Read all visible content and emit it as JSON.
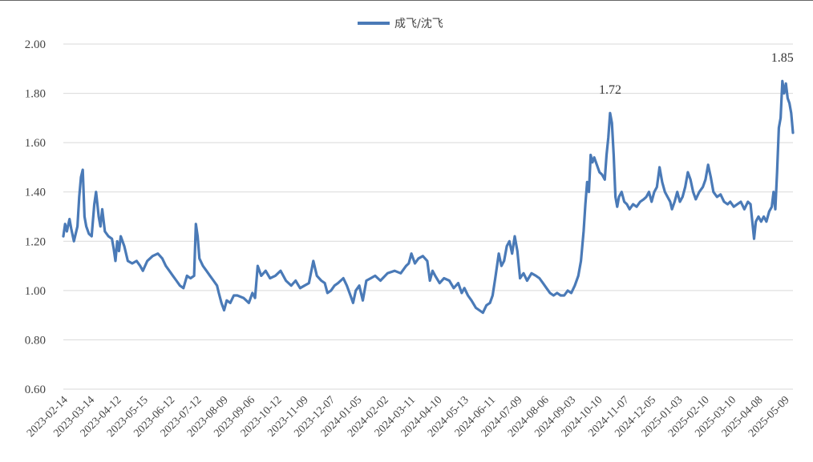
{
  "chart_data": {
    "type": "line",
    "title": "",
    "xlabel": "",
    "ylabel": "",
    "ylim": [
      0.6,
      2.0
    ],
    "yticks": [
      "0.60",
      "0.80",
      "1.00",
      "1.20",
      "1.40",
      "1.60",
      "1.80",
      "2.00"
    ],
    "grid": "horizontal",
    "legend": "top-center",
    "x_range": [
      "2023-02-14",
      "2025-05-20"
    ],
    "x_ticks": [
      "2023-02-14",
      "2023-03-14",
      "2023-04-12",
      "2023-05-15",
      "2023-06-12",
      "2023-07-12",
      "2023-08-09",
      "2023-09-06",
      "2023-10-12",
      "2023-11-09",
      "2023-12-07",
      "2024-01-05",
      "2024-02-02",
      "2024-03-11",
      "2024-04-10",
      "2024-05-13",
      "2024-06-11",
      "2024-07-09",
      "2024-08-06",
      "2024-09-03",
      "2024-10-10",
      "2024-11-07",
      "2024-12-05",
      "2025-01-03",
      "2025-02-10",
      "2025-03-10",
      "2025-04-08",
      "2025-05-09"
    ],
    "series": [
      {
        "name": "成飞/沈飞",
        "color": "#4a7ab7",
        "points": [
          [
            "2023-02-14",
            1.22
          ],
          [
            "2023-02-16",
            1.27
          ],
          [
            "2023-02-18",
            1.24
          ],
          [
            "2023-02-21",
            1.29
          ],
          [
            "2023-02-23",
            1.25
          ],
          [
            "2023-02-26",
            1.2
          ],
          [
            "2023-02-28",
            1.23
          ],
          [
            "2023-03-02",
            1.26
          ],
          [
            "2023-03-04",
            1.38
          ],
          [
            "2023-03-06",
            1.46
          ],
          [
            "2023-03-08",
            1.49
          ],
          [
            "2023-03-10",
            1.3
          ],
          [
            "2023-03-12",
            1.26
          ],
          [
            "2023-03-15",
            1.23
          ],
          [
            "2023-03-18",
            1.22
          ],
          [
            "2023-03-21",
            1.35
          ],
          [
            "2023-03-23",
            1.4
          ],
          [
            "2023-03-26",
            1.3
          ],
          [
            "2023-03-28",
            1.26
          ],
          [
            "2023-03-30",
            1.33
          ],
          [
            "2023-04-02",
            1.24
          ],
          [
            "2023-04-06",
            1.22
          ],
          [
            "2023-04-10",
            1.21
          ],
          [
            "2023-04-12",
            1.17
          ],
          [
            "2023-04-14",
            1.12
          ],
          [
            "2023-04-16",
            1.2
          ],
          [
            "2023-04-18",
            1.16
          ],
          [
            "2023-04-20",
            1.22
          ],
          [
            "2023-04-24",
            1.18
          ],
          [
            "2023-04-28",
            1.12
          ],
          [
            "2023-05-03",
            1.11
          ],
          [
            "2023-05-08",
            1.12
          ],
          [
            "2023-05-12",
            1.1
          ],
          [
            "2023-05-15",
            1.08
          ],
          [
            "2023-05-20",
            1.12
          ],
          [
            "2023-05-26",
            1.14
          ],
          [
            "2023-06-01",
            1.15
          ],
          [
            "2023-06-06",
            1.13
          ],
          [
            "2023-06-10",
            1.1
          ],
          [
            "2023-06-14",
            1.08
          ],
          [
            "2023-06-18",
            1.06
          ],
          [
            "2023-06-22",
            1.04
          ],
          [
            "2023-06-26",
            1.02
          ],
          [
            "2023-06-30",
            1.01
          ],
          [
            "2023-07-04",
            1.06
          ],
          [
            "2023-07-08",
            1.05
          ],
          [
            "2023-07-12",
            1.06
          ],
          [
            "2023-07-14",
            1.27
          ],
          [
            "2023-07-16",
            1.22
          ],
          [
            "2023-07-18",
            1.13
          ],
          [
            "2023-07-22",
            1.1
          ],
          [
            "2023-07-26",
            1.08
          ],
          [
            "2023-07-30",
            1.06
          ],
          [
            "2023-08-03",
            1.04
          ],
          [
            "2023-08-07",
            1.02
          ],
          [
            "2023-08-09",
            0.99
          ],
          [
            "2023-08-12",
            0.95
          ],
          [
            "2023-08-15",
            0.92
          ],
          [
            "2023-08-18",
            0.96
          ],
          [
            "2023-08-22",
            0.95
          ],
          [
            "2023-08-26",
            0.98
          ],
          [
            "2023-08-30",
            0.98
          ],
          [
            "2023-09-06",
            0.97
          ],
          [
            "2023-09-12",
            0.95
          ],
          [
            "2023-09-16",
            0.99
          ],
          [
            "2023-09-19",
            0.97
          ],
          [
            "2023-09-22",
            1.1
          ],
          [
            "2023-09-26",
            1.06
          ],
          [
            "2023-10-01",
            1.08
          ],
          [
            "2023-10-06",
            1.05
          ],
          [
            "2023-10-12",
            1.06
          ],
          [
            "2023-10-18",
            1.08
          ],
          [
            "2023-10-24",
            1.04
          ],
          [
            "2023-10-30",
            1.02
          ],
          [
            "2023-11-04",
            1.04
          ],
          [
            "2023-11-09",
            1.01
          ],
          [
            "2023-11-14",
            1.02
          ],
          [
            "2023-11-19",
            1.03
          ],
          [
            "2023-11-24",
            1.12
          ],
          [
            "2023-11-28",
            1.06
          ],
          [
            "2023-12-03",
            1.04
          ],
          [
            "2023-12-07",
            1.03
          ],
          [
            "2023-12-10",
            0.99
          ],
          [
            "2023-12-14",
            1.0
          ],
          [
            "2023-12-18",
            1.02
          ],
          [
            "2023-12-22",
            1.03
          ],
          [
            "2023-12-28",
            1.05
          ],
          [
            "2024-01-01",
            1.02
          ],
          [
            "2024-01-05",
            0.98
          ],
          [
            "2024-01-08",
            0.95
          ],
          [
            "2024-01-11",
            1.0
          ],
          [
            "2024-01-15",
            1.02
          ],
          [
            "2024-01-19",
            0.96
          ],
          [
            "2024-01-23",
            1.04
          ],
          [
            "2024-01-28",
            1.05
          ],
          [
            "2024-02-02",
            1.06
          ],
          [
            "2024-02-08",
            1.04
          ],
          [
            "2024-02-16",
            1.07
          ],
          [
            "2024-02-24",
            1.08
          ],
          [
            "2024-03-02",
            1.07
          ],
          [
            "2024-03-08",
            1.1
          ],
          [
            "2024-03-11",
            1.11
          ],
          [
            "2024-03-14",
            1.15
          ],
          [
            "2024-03-18",
            1.11
          ],
          [
            "2024-03-22",
            1.13
          ],
          [
            "2024-03-27",
            1.14
          ],
          [
            "2024-04-01",
            1.12
          ],
          [
            "2024-04-04",
            1.04
          ],
          [
            "2024-04-07",
            1.08
          ],
          [
            "2024-04-10",
            1.06
          ],
          [
            "2024-04-15",
            1.03
          ],
          [
            "2024-04-20",
            1.05
          ],
          [
            "2024-04-26",
            1.04
          ],
          [
            "2024-05-01",
            1.01
          ],
          [
            "2024-05-06",
            1.03
          ],
          [
            "2024-05-10",
            0.99
          ],
          [
            "2024-05-13",
            1.01
          ],
          [
            "2024-05-17",
            0.98
          ],
          [
            "2024-05-21",
            0.96
          ],
          [
            "2024-05-26",
            0.93
          ],
          [
            "2024-05-30",
            0.92
          ],
          [
            "2024-06-03",
            0.91
          ],
          [
            "2024-06-07",
            0.94
          ],
          [
            "2024-06-11",
            0.95
          ],
          [
            "2024-06-14",
            0.98
          ],
          [
            "2024-06-17",
            1.05
          ],
          [
            "2024-06-19",
            1.1
          ],
          [
            "2024-06-21",
            1.15
          ],
          [
            "2024-06-24",
            1.1
          ],
          [
            "2024-06-27",
            1.12
          ],
          [
            "2024-06-30",
            1.18
          ],
          [
            "2024-07-03",
            1.2
          ],
          [
            "2024-07-06",
            1.15
          ],
          [
            "2024-07-09",
            1.22
          ],
          [
            "2024-07-12",
            1.16
          ],
          [
            "2024-07-15",
            1.05
          ],
          [
            "2024-07-19",
            1.07
          ],
          [
            "2024-07-23",
            1.04
          ],
          [
            "2024-07-28",
            1.07
          ],
          [
            "2024-08-02",
            1.06
          ],
          [
            "2024-08-06",
            1.05
          ],
          [
            "2024-08-10",
            1.03
          ],
          [
            "2024-08-14",
            1.01
          ],
          [
            "2024-08-18",
            0.99
          ],
          [
            "2024-08-22",
            0.98
          ],
          [
            "2024-08-26",
            0.99
          ],
          [
            "2024-08-30",
            0.98
          ],
          [
            "2024-09-03",
            0.98
          ],
          [
            "2024-09-07",
            1.0
          ],
          [
            "2024-09-11",
            0.99
          ],
          [
            "2024-09-15",
            1.02
          ],
          [
            "2024-09-19",
            1.06
          ],
          [
            "2024-09-22",
            1.12
          ],
          [
            "2024-09-25",
            1.24
          ],
          [
            "2024-09-27",
            1.35
          ],
          [
            "2024-09-29",
            1.44
          ],
          [
            "2024-10-01",
            1.4
          ],
          [
            "2024-10-03",
            1.55
          ],
          [
            "2024-10-05",
            1.52
          ],
          [
            "2024-10-07",
            1.54
          ],
          [
            "2024-10-10",
            1.51
          ],
          [
            "2024-10-13",
            1.48
          ],
          [
            "2024-10-16",
            1.47
          ],
          [
            "2024-10-19",
            1.45
          ],
          [
            "2024-10-21",
            1.55
          ],
          [
            "2024-10-23",
            1.62
          ],
          [
            "2024-10-25",
            1.72
          ],
          [
            "2024-10-27",
            1.68
          ],
          [
            "2024-10-29",
            1.55
          ],
          [
            "2024-10-31",
            1.38
          ],
          [
            "2024-11-02",
            1.34
          ],
          [
            "2024-11-04",
            1.38
          ],
          [
            "2024-11-07",
            1.4
          ],
          [
            "2024-11-10",
            1.36
          ],
          [
            "2024-11-13",
            1.35
          ],
          [
            "2024-11-16",
            1.33
          ],
          [
            "2024-11-20",
            1.35
          ],
          [
            "2024-11-24",
            1.34
          ],
          [
            "2024-11-28",
            1.36
          ],
          [
            "2024-12-02",
            1.37
          ],
          [
            "2024-12-05",
            1.38
          ],
          [
            "2024-12-08",
            1.4
          ],
          [
            "2024-12-11",
            1.36
          ],
          [
            "2024-12-14",
            1.4
          ],
          [
            "2024-12-17",
            1.42
          ],
          [
            "2024-12-20",
            1.5
          ],
          [
            "2024-12-23",
            1.44
          ],
          [
            "2024-12-26",
            1.4
          ],
          [
            "2024-12-29",
            1.38
          ],
          [
            "2025-01-01",
            1.36
          ],
          [
            "2025-01-03",
            1.33
          ],
          [
            "2025-01-06",
            1.36
          ],
          [
            "2025-01-09",
            1.4
          ],
          [
            "2025-01-12",
            1.36
          ],
          [
            "2025-01-15",
            1.38
          ],
          [
            "2025-01-18",
            1.42
          ],
          [
            "2025-01-21",
            1.48
          ],
          [
            "2025-01-24",
            1.45
          ],
          [
            "2025-01-27",
            1.4
          ],
          [
            "2025-01-30",
            1.37
          ],
          [
            "2025-02-03",
            1.4
          ],
          [
            "2025-02-07",
            1.42
          ],
          [
            "2025-02-10",
            1.45
          ],
          [
            "2025-02-13",
            1.51
          ],
          [
            "2025-02-16",
            1.46
          ],
          [
            "2025-02-19",
            1.4
          ],
          [
            "2025-02-23",
            1.38
          ],
          [
            "2025-02-27",
            1.39
          ],
          [
            "2025-03-03",
            1.36
          ],
          [
            "2025-03-07",
            1.35
          ],
          [
            "2025-03-10",
            1.36
          ],
          [
            "2025-03-14",
            1.34
          ],
          [
            "2025-03-18",
            1.35
          ],
          [
            "2025-03-22",
            1.36
          ],
          [
            "2025-03-26",
            1.33
          ],
          [
            "2025-03-30",
            1.36
          ],
          [
            "2025-04-02",
            1.35
          ],
          [
            "2025-04-04",
            1.28
          ],
          [
            "2025-04-06",
            1.21
          ],
          [
            "2025-04-08",
            1.28
          ],
          [
            "2025-04-11",
            1.3
          ],
          [
            "2025-04-14",
            1.28
          ],
          [
            "2025-04-17",
            1.3
          ],
          [
            "2025-04-20",
            1.28
          ],
          [
            "2025-04-23",
            1.32
          ],
          [
            "2025-04-26",
            1.34
          ],
          [
            "2025-04-28",
            1.4
          ],
          [
            "2025-04-30",
            1.33
          ],
          [
            "2025-05-02",
            1.48
          ],
          [
            "2025-05-04",
            1.66
          ],
          [
            "2025-05-06",
            1.7
          ],
          [
            "2025-05-08",
            1.85
          ],
          [
            "2025-05-10",
            1.8
          ],
          [
            "2025-05-12",
            1.84
          ],
          [
            "2025-05-14",
            1.78
          ],
          [
            "2025-05-16",
            1.76
          ],
          [
            "2025-05-18",
            1.72
          ],
          [
            "2025-05-20",
            1.64
          ]
        ]
      }
    ],
    "annotations": [
      {
        "text": "1.72",
        "x": "2024-10-25",
        "y": 1.72
      },
      {
        "text": "1.85",
        "x": "2025-05-08",
        "y": 1.85
      }
    ]
  }
}
